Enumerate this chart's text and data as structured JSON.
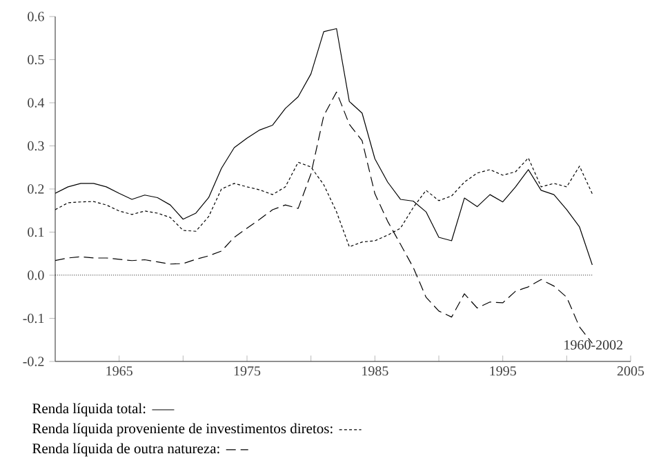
{
  "chart_data": {
    "type": "line",
    "x": [
      1960,
      1961,
      1962,
      1963,
      1964,
      1965,
      1966,
      1967,
      1968,
      1969,
      1970,
      1971,
      1972,
      1973,
      1974,
      1975,
      1976,
      1977,
      1978,
      1979,
      1980,
      1981,
      1982,
      1983,
      1984,
      1985,
      1986,
      1987,
      1988,
      1989,
      1990,
      1991,
      1992,
      1993,
      1994,
      1995,
      1996,
      1997,
      1998,
      1999,
      2000,
      2001,
      2002
    ],
    "series": [
      {
        "name": "Renda líquida total:",
        "color": "#000000",
        "line_style": "solid",
        "values": [
          0.19,
          0.205,
          0.213,
          0.213,
          0.205,
          0.19,
          0.176,
          0.186,
          0.18,
          0.163,
          0.13,
          0.144,
          0.18,
          0.248,
          0.296,
          0.318,
          0.337,
          0.348,
          0.387,
          0.414,
          0.467,
          0.565,
          0.572,
          0.403,
          0.376,
          0.27,
          0.216,
          0.176,
          0.172,
          0.147,
          0.088,
          0.08,
          0.179,
          0.159,
          0.187,
          0.17,
          0.205,
          0.245,
          0.197,
          0.187,
          0.152,
          0.112,
          0.024
        ]
      },
      {
        "name": "Renda líquida proveniente de investimentos diretos:",
        "color": "#000000",
        "line_style": "dotted",
        "values": [
          0.152,
          0.168,
          0.17,
          0.171,
          0.163,
          0.149,
          0.141,
          0.149,
          0.144,
          0.134,
          0.104,
          0.102,
          0.136,
          0.2,
          0.213,
          0.205,
          0.198,
          0.187,
          0.205,
          0.262,
          0.251,
          0.21,
          0.147,
          0.066,
          0.077,
          0.08,
          0.093,
          0.109,
          0.157,
          0.197,
          0.173,
          0.184,
          0.216,
          0.237,
          0.245,
          0.232,
          0.24,
          0.272,
          0.205,
          0.213,
          0.205,
          0.253,
          0.189
        ]
      },
      {
        "name": "Renda líquida de outra natureza:",
        "color": "#000000",
        "line_style": "dashed",
        "values": [
          0.034,
          0.04,
          0.043,
          0.04,
          0.04,
          0.037,
          0.034,
          0.036,
          0.031,
          0.026,
          0.027,
          0.037,
          0.045,
          0.056,
          0.088,
          0.109,
          0.13,
          0.152,
          0.163,
          0.155,
          0.235,
          0.37,
          0.425,
          0.35,
          0.312,
          0.189,
          0.125,
          0.072,
          0.018,
          -0.051,
          -0.083,
          -0.097,
          -0.043,
          -0.076,
          -0.062,
          -0.064,
          -0.037,
          -0.027,
          -0.01,
          -0.025,
          -0.051,
          -0.12,
          -0.158
        ]
      }
    ],
    "xlim": [
      1960,
      2005
    ],
    "xticks": [
      1965,
      {
        "value": 1970,
        "label": null
      },
      1975,
      {
        "value": 1980,
        "label": null
      },
      1985,
      {
        "value": 1990,
        "label": null
      },
      1995,
      {
        "value": 2000,
        "label": null
      },
      2005
    ],
    "ylim": [
      -0.2,
      0.6
    ],
    "yticks": [
      -0.2,
      -0.1,
      {
        "value": 0,
        "label": "0.0"
      },
      0.1,
      0.2,
      0.3,
      0.4,
      0.5,
      0.6
    ],
    "ref_lines": [
      {
        "axis": "y",
        "value": 0,
        "color": "#000000",
        "line_style": "dotted"
      }
    ],
    "annotations": [
      "1960-2002"
    ],
    "legend": "bottom",
    "marker": "none",
    "grid": false
  }
}
